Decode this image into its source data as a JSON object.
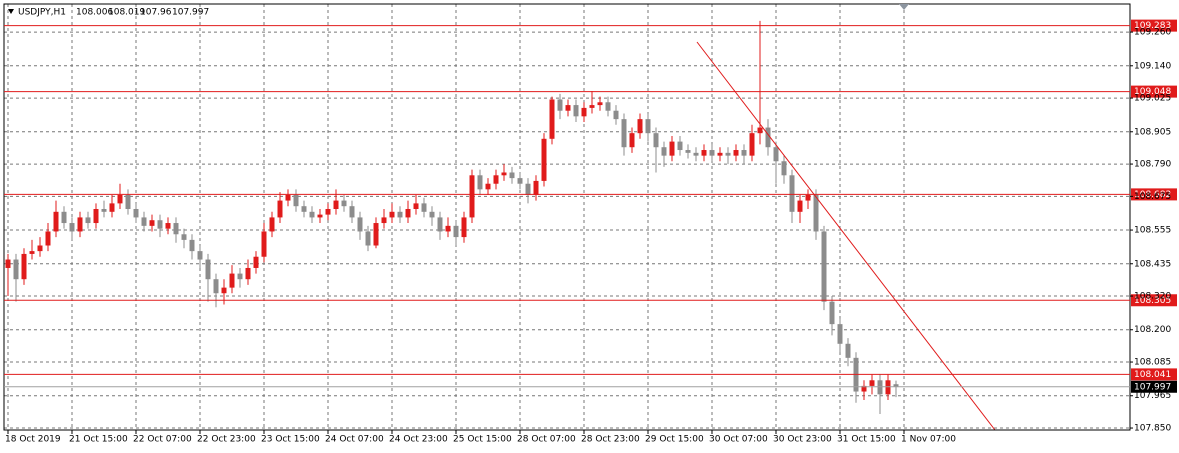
{
  "chart_data": {
    "type": "candlestick",
    "title": "USDJPY,H1",
    "up_color": "#e01b1b",
    "down_color": "#8c8c8c",
    "level_color": "#e01b1b",
    "grid": true,
    "xlim": [
      -0.5,
      140.25
    ],
    "ylim": [
      107.843,
      109.36
    ],
    "xticks": [
      {
        "value": 0,
        "label": "18 Oct 2019"
      },
      {
        "value": 8,
        "label": "21 Oct 15:00"
      },
      {
        "value": 16,
        "label": "22 Oct 07:00"
      },
      {
        "value": 24,
        "label": "22 Oct 23:00"
      },
      {
        "value": 32,
        "label": "23 Oct 15:00"
      },
      {
        "value": 40,
        "label": "24 Oct 07:00"
      },
      {
        "value": 48,
        "label": "24 Oct 23:00"
      },
      {
        "value": 56,
        "label": "25 Oct 15:00"
      },
      {
        "value": 64,
        "label": "28 Oct 07:00"
      },
      {
        "value": 72,
        "label": "28 Oct 23:00"
      },
      {
        "value": 80,
        "label": "29 Oct 15:00"
      },
      {
        "value": 88,
        "label": "30 Oct 07:00"
      },
      {
        "value": 96,
        "label": "30 Oct 23:00"
      },
      {
        "value": 104,
        "label": "31 Oct 15:00"
      },
      {
        "value": 112,
        "label": "1 Nov 07:00"
      }
    ],
    "yticks": [
      {
        "value": 109.26,
        "label": "109.260"
      },
      {
        "value": 109.14,
        "label": "109.140"
      },
      {
        "value": 109.025,
        "label": "109.025"
      },
      {
        "value": 108.905,
        "label": "108.905"
      },
      {
        "value": 108.79,
        "label": "108.790"
      },
      {
        "value": 108.675,
        "label": "108.675"
      },
      {
        "value": 108.555,
        "label": "108.555"
      },
      {
        "value": 108.435,
        "label": "108.435"
      },
      {
        "value": 108.32,
        "label": "108.320"
      },
      {
        "value": 108.2,
        "label": "108.200"
      },
      {
        "value": 108.085,
        "label": "108.085"
      },
      {
        "value": 107.965,
        "label": "107.965"
      },
      {
        "value": 107.85,
        "label": "107.850"
      }
    ],
    "levels": [
      109.283,
      109.048,
      108.682,
      108.305,
      108.041
    ],
    "series": {
      "open": [
        108.42,
        108.45,
        108.38,
        108.47,
        108.48,
        108.5,
        108.55,
        108.62,
        108.58,
        108.55,
        108.6,
        108.58,
        108.63,
        108.62,
        108.65,
        108.68,
        108.63,
        108.6,
        108.57,
        108.59,
        108.56,
        108.58,
        108.54,
        108.52,
        108.48,
        108.45,
        108.38,
        108.33,
        108.35,
        108.4,
        108.38,
        108.42,
        108.46,
        108.55,
        108.6,
        108.66,
        108.68,
        108.64,
        108.62,
        108.6,
        108.61,
        108.63,
        108.66,
        108.64,
        108.6,
        108.55,
        108.5,
        108.58,
        108.6,
        108.62,
        108.6,
        108.63,
        108.65,
        108.62,
        108.6,
        108.55,
        108.57,
        108.53,
        108.6,
        108.75,
        108.7,
        108.72,
        108.75,
        108.76,
        108.74,
        108.72,
        108.68,
        108.73,
        108.88,
        109.02,
        108.98,
        109.0,
        108.96,
        108.99,
        109.0,
        109.01,
        108.98,
        108.95,
        108.85,
        108.9,
        108.95,
        108.9,
        108.85,
        108.82,
        108.87,
        108.84,
        108.83,
        108.82,
        108.84,
        108.82,
        108.83,
        108.82,
        108.84,
        108.82,
        108.9,
        108.92,
        108.85,
        108.8,
        108.75,
        108.62,
        108.66,
        108.68,
        108.55,
        108.3,
        108.22,
        108.15,
        108.1,
        107.98,
        108.0,
        108.02,
        107.97,
        108.006
      ],
      "high": [
        108.47,
        108.47,
        108.49,
        108.52,
        108.53,
        108.58,
        108.66,
        108.64,
        108.6,
        108.62,
        108.62,
        108.65,
        108.66,
        108.68,
        108.72,
        108.7,
        108.65,
        108.62,
        108.61,
        108.61,
        108.6,
        108.6,
        108.56,
        108.54,
        108.5,
        108.47,
        108.4,
        108.38,
        108.43,
        108.42,
        108.45,
        108.48,
        108.58,
        108.62,
        108.69,
        108.7,
        108.7,
        108.66,
        108.64,
        108.63,
        108.65,
        108.7,
        108.68,
        108.66,
        108.62,
        108.57,
        108.6,
        108.63,
        108.65,
        108.64,
        108.66,
        108.68,
        108.67,
        108.64,
        108.62,
        108.6,
        108.59,
        108.62,
        108.77,
        108.77,
        108.74,
        108.77,
        108.79,
        108.78,
        108.76,
        108.74,
        108.75,
        108.9,
        109.03,
        109.04,
        109.02,
        109.02,
        109.01,
        109.05,
        109.03,
        109.03,
        109.0,
        108.97,
        108.92,
        108.97,
        108.97,
        108.92,
        108.87,
        108.89,
        108.89,
        108.86,
        108.85,
        108.86,
        108.86,
        108.85,
        108.85,
        108.86,
        108.86,
        108.93,
        109.3,
        108.95,
        108.87,
        108.82,
        108.77,
        108.68,
        108.7,
        108.7,
        108.57,
        108.32,
        108.24,
        108.17,
        108.12,
        108.02,
        108.04,
        108.04,
        108.04,
        108.019
      ],
      "low": [
        108.32,
        108.3,
        108.36,
        108.45,
        108.46,
        108.48,
        108.53,
        108.56,
        108.52,
        108.53,
        108.56,
        108.56,
        108.6,
        108.6,
        108.63,
        108.61,
        108.58,
        108.55,
        108.55,
        108.53,
        108.54,
        108.51,
        108.49,
        108.45,
        108.42,
        108.3,
        108.28,
        108.29,
        108.33,
        108.35,
        108.36,
        108.4,
        108.44,
        108.53,
        108.58,
        108.64,
        108.62,
        108.6,
        108.58,
        108.58,
        108.59,
        108.61,
        108.62,
        108.58,
        108.52,
        108.48,
        108.49,
        108.56,
        108.58,
        108.58,
        108.58,
        108.61,
        108.6,
        108.57,
        108.52,
        108.53,
        108.5,
        108.51,
        108.58,
        108.68,
        108.68,
        108.7,
        108.73,
        108.72,
        108.7,
        108.65,
        108.66,
        108.71,
        108.86,
        108.95,
        108.96,
        108.94,
        108.94,
        108.97,
        108.98,
        108.96,
        108.93,
        108.82,
        108.83,
        108.88,
        108.87,
        108.76,
        108.78,
        108.8,
        108.82,
        108.81,
        108.8,
        108.8,
        108.8,
        108.8,
        108.79,
        108.8,
        108.79,
        108.8,
        108.86,
        108.82,
        108.72,
        108.72,
        108.58,
        108.58,
        108.63,
        108.52,
        108.27,
        108.18,
        108.12,
        108.07,
        107.94,
        107.95,
        107.97,
        107.9,
        107.95,
        107.96
      ],
      "close": [
        108.45,
        108.38,
        108.47,
        108.48,
        108.5,
        108.55,
        108.62,
        108.58,
        108.55,
        108.6,
        108.58,
        108.63,
        108.62,
        108.65,
        108.68,
        108.63,
        108.6,
        108.57,
        108.59,
        108.56,
        108.58,
        108.54,
        108.52,
        108.48,
        108.45,
        108.38,
        108.33,
        108.35,
        108.4,
        108.38,
        108.42,
        108.46,
        108.55,
        108.6,
        108.66,
        108.68,
        108.64,
        108.62,
        108.6,
        108.61,
        108.63,
        108.66,
        108.64,
        108.6,
        108.55,
        108.5,
        108.58,
        108.6,
        108.62,
        108.6,
        108.63,
        108.65,
        108.62,
        108.6,
        108.55,
        108.57,
        108.53,
        108.6,
        108.75,
        108.7,
        108.72,
        108.75,
        108.76,
        108.74,
        108.72,
        108.68,
        108.73,
        108.88,
        109.02,
        108.98,
        109.0,
        108.96,
        108.99,
        109.0,
        109.01,
        108.98,
        108.95,
        108.85,
        108.9,
        108.95,
        108.9,
        108.85,
        108.82,
        108.87,
        108.84,
        108.83,
        108.82,
        108.84,
        108.82,
        108.83,
        108.82,
        108.84,
        108.82,
        108.9,
        108.92,
        108.85,
        108.8,
        108.75,
        108.62,
        108.66,
        108.68,
        108.55,
        108.3,
        108.22,
        108.15,
        108.1,
        107.98,
        108.0,
        108.02,
        107.97,
        108.02,
        107.997
      ]
    }
  }
}
